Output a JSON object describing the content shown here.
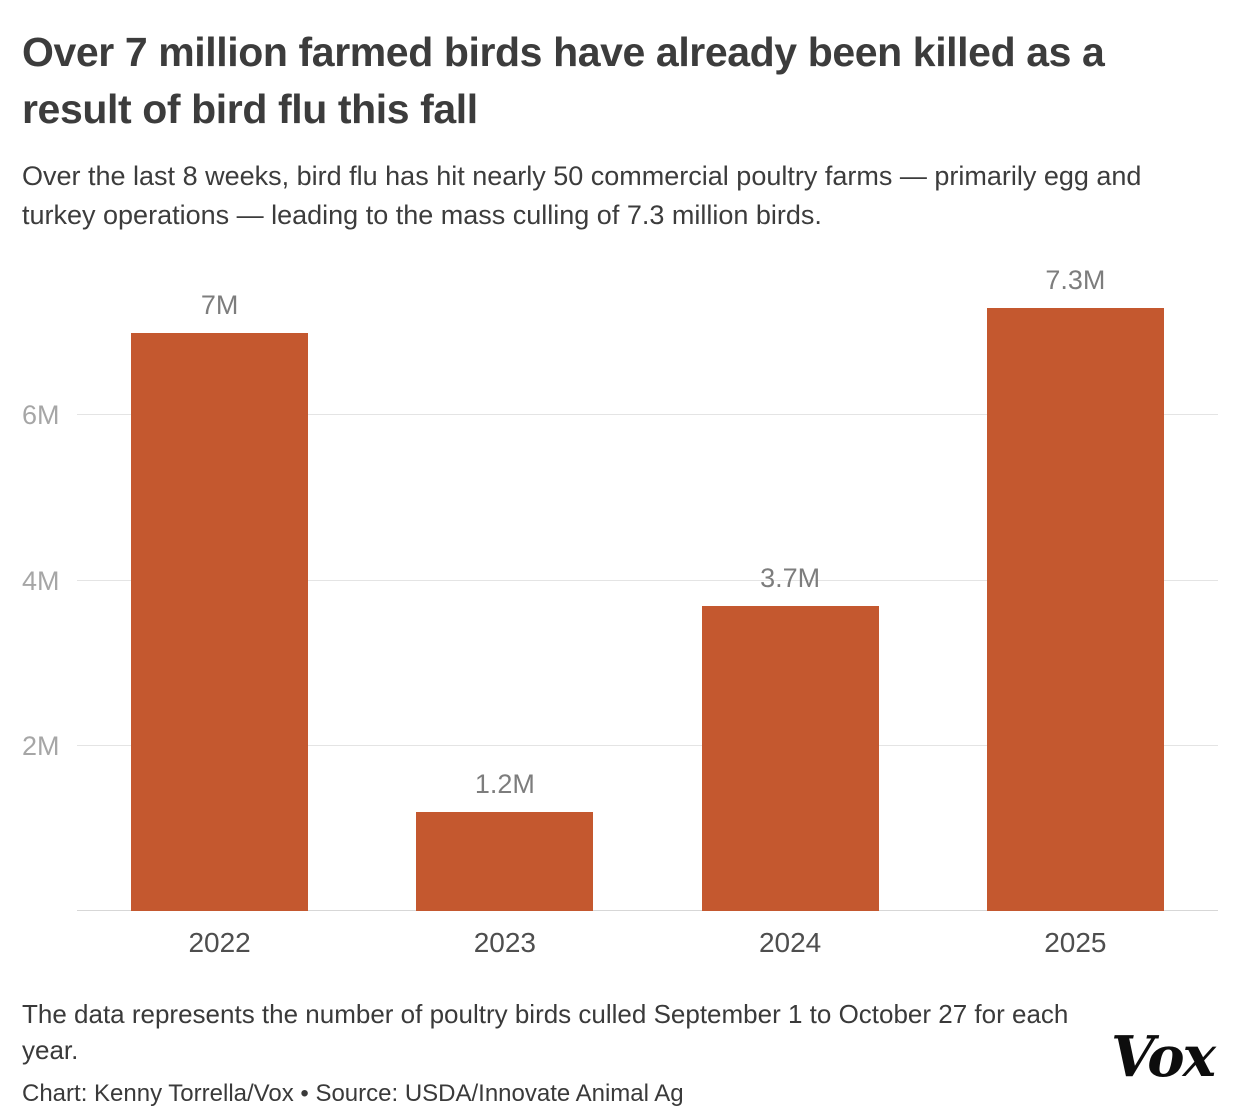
{
  "header": {
    "title": "Over 7 million farmed birds have already been killed as a result of bird flu this fall",
    "subtitle": "Over the last 8 weeks, bird flu has hit nearly 50 commercial poultry farms — primarily egg and turkey operations — leading to the mass culling of 7.3 million birds."
  },
  "chart_data": {
    "type": "bar",
    "title": "Over 7 million farmed birds have already been killed as a result of bird flu this fall",
    "categories": [
      "2022",
      "2023",
      "2024",
      "2025"
    ],
    "values": [
      7.0,
      1.2,
      3.7,
      7.3
    ],
    "value_labels": [
      "7M",
      "1.2M",
      "3.7M",
      "7.3M"
    ],
    "unit": "millions of birds culled",
    "ylim": [
      0,
      7.5
    ],
    "yticks": [
      {
        "value": 2,
        "label": "2M"
      },
      {
        "value": 4,
        "label": "4M"
      },
      {
        "value": 6,
        "label": "6M"
      }
    ],
    "grid": true,
    "legend": "none",
    "bar_color": "#c4582f",
    "gridline_color": "#e4e4e4",
    "label_color": "#7d7d7d",
    "ytick_color": "#a6a6a6"
  },
  "footer": {
    "note": "The data represents the number of poultry birds culled September 1 to October 27 for each year.",
    "credit": "Chart: Kenny Torrella/Vox • Source: USDA/Innovate Animal Ag",
    "logo": "Vox"
  }
}
